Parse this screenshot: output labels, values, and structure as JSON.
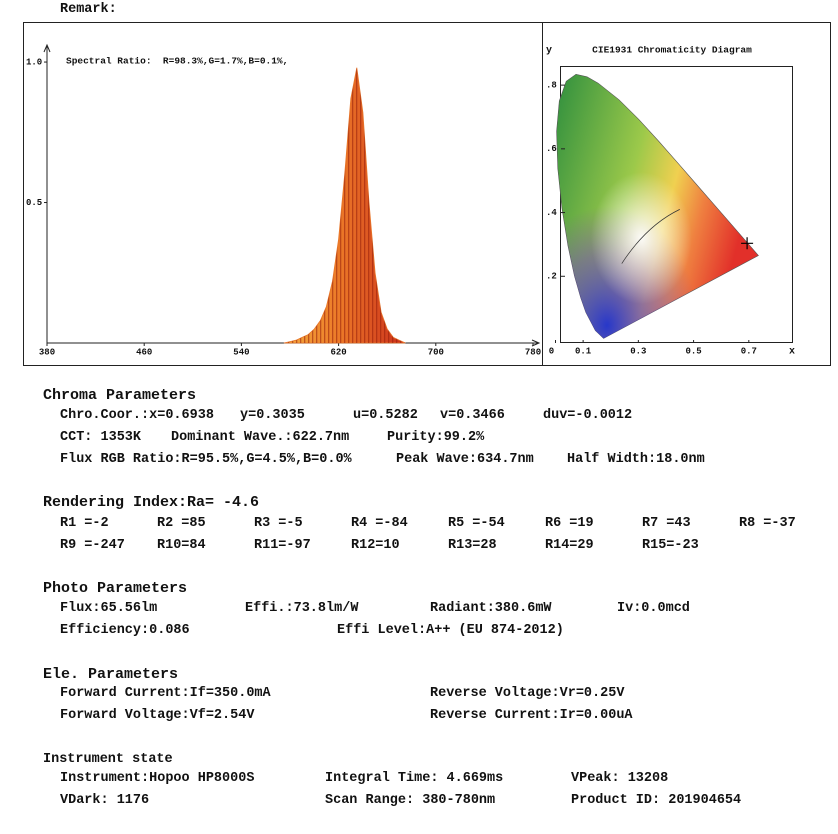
{
  "remark": "Remark:",
  "chart_data": [
    {
      "type": "area",
      "annotation": "Spectral Ratio:  R=98.3%,G=1.7%,B=0.1%,",
      "x": [
        575,
        580,
        585,
        590,
        595,
        600,
        605,
        610,
        615,
        620,
        625,
        630,
        635,
        640,
        645,
        650,
        655,
        660,
        665,
        670,
        675
      ],
      "values": [
        0,
        0.005,
        0.01,
        0.02,
        0.03,
        0.05,
        0.08,
        0.13,
        0.22,
        0.37,
        0.6,
        0.87,
        0.98,
        0.82,
        0.5,
        0.25,
        0.11,
        0.05,
        0.02,
        0.01,
        0
      ],
      "color": "#e8762a",
      "xlim": [
        380,
        780
      ],
      "xticks": [
        380,
        460,
        540,
        620,
        700,
        780
      ],
      "ylim": [
        0,
        1.05
      ],
      "yticks": [
        {
          "value": 1,
          "label": "1.0"
        },
        0.5
      ]
    },
    {
      "type": "scatter",
      "title": "CIE1931 Chromaticity Diagram",
      "xlabel": "x",
      "ylabel": "y",
      "x": [
        0.6938
      ],
      "values": [
        0.3035
      ],
      "color": "#000000",
      "xlim": [
        0,
        0.86
      ],
      "xticks": [
        0,
        0.1,
        0.3,
        0.5,
        0.7
      ],
      "ylim": [
        0,
        0.86
      ],
      "yticks": [
        {
          "value": 0.8,
          "label": ".8"
        },
        {
          "value": 0.6,
          "label": ".6"
        },
        {
          "value": 0.4,
          "label": ".4"
        },
        {
          "value": 0.2,
          "label": ".2"
        }
      ]
    }
  ],
  "sections": [
    {
      "title": "Chroma Parameters",
      "rows": [
        [
          "Chro.Coor.:x=0.6938",
          "y=0.3035",
          "u=0.5282",
          "v=0.3466",
          "duv=-0.0012"
        ],
        [
          "CCT: 1353K",
          "Dominant Wave.:622.7nm",
          "Purity:99.2%"
        ],
        [
          "Flux RGB Ratio:R=95.5%,G=4.5%,B=0.0%",
          "Peak Wave:634.7nm",
          "Half Width:18.0nm"
        ]
      ]
    },
    {
      "title": "Rendering Index:Ra= -4.6",
      "rows": [
        [
          "R1 =-2",
          "R2 =85",
          "R3 =-5",
          "R4 =-84",
          "R5 =-54",
          "R6 =19",
          "R7 =43",
          "R8 =-37"
        ],
        [
          "R9 =-247",
          "R10=84",
          "R11=-97",
          "R12=10",
          "R13=28",
          "R14=29",
          "R15=-23"
        ]
      ]
    },
    {
      "title": "Photo Parameters",
      "rows": [
        [
          "Flux:65.56lm",
          "Effi.:73.8lm/W",
          "Radiant:380.6mW",
          "Iv:0.0mcd"
        ],
        [
          "Efficiency:0.086",
          "Effi Level:A++ (EU 874-2012)"
        ]
      ]
    },
    {
      "title": "Ele. Parameters",
      "rows": [
        [
          "Forward Current:If=350.0mA",
          "Reverse Voltage:Vr=0.25V"
        ],
        [
          "Forward Voltage:Vf=2.54V",
          "Reverse Current:Ir=0.00uA"
        ]
      ]
    },
    {
      "title": "Instrument state",
      "rows": [
        [
          "Instrument:Hopoo HP8000S",
          "Integral Time: 4.669ms",
          "VPeak: 13208"
        ],
        [
          "VDark: 1176",
          "Scan Range: 380-780nm",
          "Product ID: 201904654"
        ]
      ]
    }
  ]
}
